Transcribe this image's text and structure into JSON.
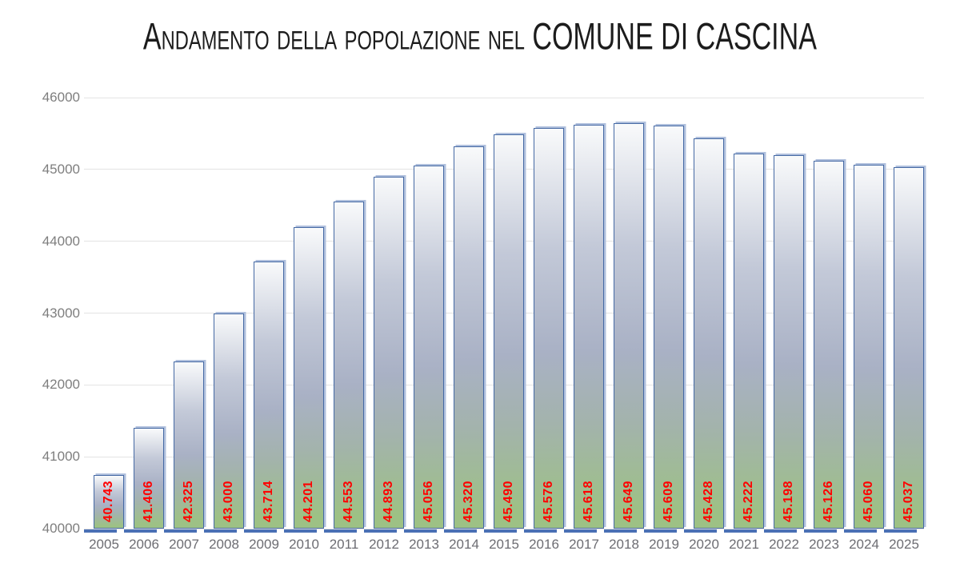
{
  "chart_data": {
    "type": "bar",
    "title": "Andamento della popolazione nel COMUNE DI CASCINA",
    "categories": [
      "2005",
      "2006",
      "2007",
      "2008",
      "2009",
      "2010",
      "2011",
      "2012",
      "2013",
      "2014",
      "2015",
      "2016",
      "2017",
      "2018",
      "2019",
      "2020",
      "2021",
      "2022",
      "2023",
      "2024",
      "2025"
    ],
    "values": [
      40743,
      41406,
      42325,
      43000,
      43714,
      44201,
      44553,
      44893,
      45056,
      45320,
      45490,
      45576,
      45618,
      45649,
      45609,
      45428,
      45222,
      45198,
      45126,
      45060,
      45037
    ],
    "bar_labels": [
      "40.743",
      "41.406",
      "42.325",
      "43.000",
      "43.714",
      "44.201",
      "44.553",
      "44.893",
      "45.056",
      "45.320",
      "45.490",
      "45.576",
      "45.618",
      "45.649",
      "45.609",
      "45.428",
      "45.222",
      "45.198",
      "45.126",
      "45.060",
      "45.037"
    ],
    "xlabel": "",
    "ylabel": "",
    "ylim": [
      40000,
      46000
    ],
    "ytick_interval": 1000,
    "yticks": [
      "46000",
      "45000",
      "44000",
      "43000",
      "42000",
      "41000",
      "40000"
    ],
    "grid": true,
    "legend": "none",
    "colors": {
      "title_text": "#1c1c1c",
      "axis_y_text": "#7e7e7e",
      "axis_x_text": "#6c6c72",
      "gridline": "#e3e3e3",
      "bar_border": "#4569a4",
      "bar_shadow": "#b0c0dd",
      "bar_gradient_top": "#f9fafb",
      "bar_gradient_upper": "#c3c9d8",
      "bar_gradient_mid": "#a9b1c5",
      "bar_gradient_lower": "#a3b3ac",
      "bar_gradient_bottom": "#9dc185",
      "bar_value_label": "#ff0000",
      "base_strip": "#4a70b5"
    }
  }
}
